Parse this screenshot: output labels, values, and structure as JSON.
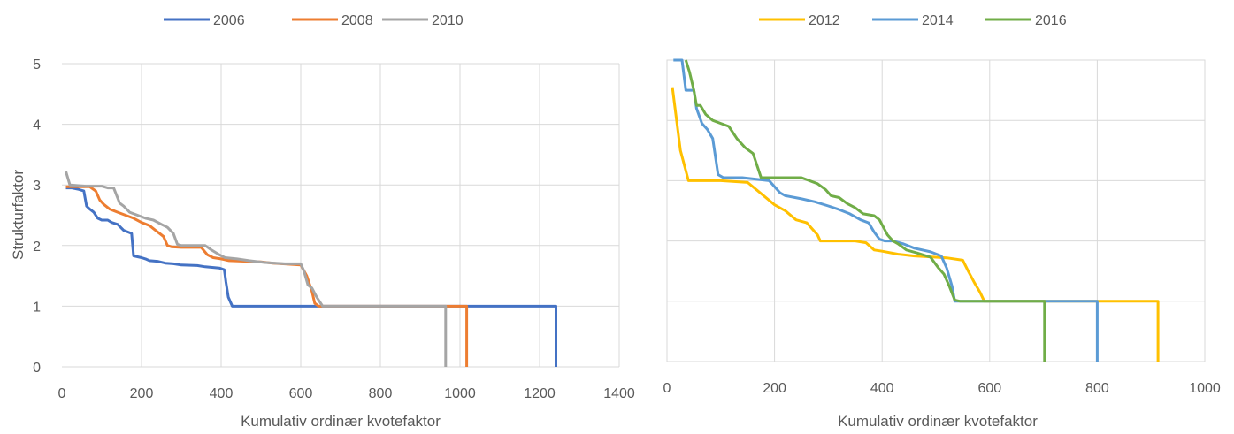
{
  "chart_data": [
    {
      "type": "line",
      "title": "",
      "xlabel": "Kumulativ ordinær kvotefaktor",
      "ylabel": "Strukturfaktor",
      "xlim": [
        0,
        1400
      ],
      "ylim": [
        0,
        5
      ],
      "x_ticks": [
        "0",
        "200",
        "400",
        "600",
        "800",
        "1000",
        "1200",
        "1400"
      ],
      "y_ticks": [
        "0",
        "1",
        "2",
        "3",
        "4",
        "5"
      ],
      "grid": "vertical",
      "legend": "top",
      "series": [
        {
          "name": "2006",
          "color": "#4472C4",
          "points": [
            [
              10,
              2.95
            ],
            [
              25,
              2.95
            ],
            [
              40,
              2.93
            ],
            [
              55,
              2.9
            ],
            [
              62,
              2.65
            ],
            [
              70,
              2.6
            ],
            [
              80,
              2.55
            ],
            [
              90,
              2.45
            ],
            [
              100,
              2.42
            ],
            [
              115,
              2.42
            ],
            [
              125,
              2.38
            ],
            [
              140,
              2.35
            ],
            [
              155,
              2.25
            ],
            [
              175,
              2.2
            ],
            [
              180,
              1.83
            ],
            [
              200,
              1.8
            ],
            [
              210,
              1.78
            ],
            [
              220,
              1.75
            ],
            [
              240,
              1.74
            ],
            [
              260,
              1.71
            ],
            [
              280,
              1.7
            ],
            [
              300,
              1.68
            ],
            [
              340,
              1.67
            ],
            [
              360,
              1.65
            ],
            [
              395,
              1.63
            ],
            [
              408,
              1.6
            ],
            [
              412,
              1.4
            ],
            [
              418,
              1.15
            ],
            [
              428,
              1.0
            ],
            [
              600,
              1.0
            ],
            [
              1241,
              1.0
            ],
            [
              1241,
              0
            ]
          ]
        },
        {
          "name": "2008",
          "color": "#ED7D31",
          "points": [
            [
              10,
              2.97
            ],
            [
              70,
              2.97
            ],
            [
              85,
              2.9
            ],
            [
              95,
              2.75
            ],
            [
              105,
              2.68
            ],
            [
              120,
              2.6
            ],
            [
              140,
              2.55
            ],
            [
              160,
              2.5
            ],
            [
              180,
              2.45
            ],
            [
              200,
              2.38
            ],
            [
              220,
              2.33
            ],
            [
              235,
              2.25
            ],
            [
              255,
              2.15
            ],
            [
              265,
              2.0
            ],
            [
              275,
              1.98
            ],
            [
              300,
              1.97
            ],
            [
              350,
              1.97
            ],
            [
              365,
              1.85
            ],
            [
              380,
              1.8
            ],
            [
              400,
              1.78
            ],
            [
              420,
              1.75
            ],
            [
              500,
              1.73
            ],
            [
              530,
              1.71
            ],
            [
              600,
              1.68
            ],
            [
              615,
              1.5
            ],
            [
              628,
              1.25
            ],
            [
              635,
              1.05
            ],
            [
              645,
              1.0
            ],
            [
              800,
              1.0
            ],
            [
              1017,
              1.0
            ],
            [
              1017,
              0
            ]
          ]
        },
        {
          "name": "2010",
          "color": "#A5A5A5",
          "points": [
            [
              10,
              3.22
            ],
            [
              20,
              3.0
            ],
            [
              60,
              2.98
            ],
            [
              100,
              2.98
            ],
            [
              115,
              2.95
            ],
            [
              130,
              2.95
            ],
            [
              145,
              2.7
            ],
            [
              155,
              2.65
            ],
            [
              170,
              2.55
            ],
            [
              190,
              2.5
            ],
            [
              210,
              2.45
            ],
            [
              230,
              2.42
            ],
            [
              250,
              2.35
            ],
            [
              265,
              2.3
            ],
            [
              280,
              2.2
            ],
            [
              290,
              2.02
            ],
            [
              300,
              2.0
            ],
            [
              360,
              2.0
            ],
            [
              375,
              1.93
            ],
            [
              395,
              1.85
            ],
            [
              410,
              1.8
            ],
            [
              440,
              1.78
            ],
            [
              470,
              1.75
            ],
            [
              510,
              1.72
            ],
            [
              560,
              1.7
            ],
            [
              600,
              1.7
            ],
            [
              608,
              1.58
            ],
            [
              618,
              1.35
            ],
            [
              628,
              1.3
            ],
            [
              640,
              1.15
            ],
            [
              655,
              1.0
            ],
            [
              700,
              1.0
            ],
            [
              964,
              1.0
            ],
            [
              964,
              0
            ]
          ]
        }
      ]
    },
    {
      "type": "line",
      "title": "",
      "xlabel": "Kumulativ ordinær kvotefaktor",
      "ylabel": "",
      "xlim": [
        0,
        1000
      ],
      "ylim": [
        0,
        5
      ],
      "x_ticks": [
        "0",
        "200",
        "400",
        "600",
        "800",
        "1000"
      ],
      "y_ticks": [],
      "grid": "both",
      "legend": "top",
      "series": [
        {
          "name": "2012",
          "color": "#FFC000",
          "points": [
            [
              10,
              4.55
            ],
            [
              25,
              3.5
            ],
            [
              40,
              3.0
            ],
            [
              100,
              3.0
            ],
            [
              150,
              2.97
            ],
            [
              200,
              2.6
            ],
            [
              220,
              2.5
            ],
            [
              240,
              2.35
            ],
            [
              260,
              2.3
            ],
            [
              280,
              2.1
            ],
            [
              285,
              2.0
            ],
            [
              300,
              2.0
            ],
            [
              350,
              2.0
            ],
            [
              370,
              1.97
            ],
            [
              385,
              1.85
            ],
            [
              400,
              1.83
            ],
            [
              430,
              1.78
            ],
            [
              460,
              1.75
            ],
            [
              500,
              1.73
            ],
            [
              520,
              1.72
            ],
            [
              550,
              1.68
            ],
            [
              560,
              1.5
            ],
            [
              572,
              1.3
            ],
            [
              582,
              1.15
            ],
            [
              590,
              1.0
            ],
            [
              700,
              1.0
            ],
            [
              913,
              1.0
            ],
            [
              913,
              0
            ]
          ]
        },
        {
          "name": "2014",
          "color": "#5B9BD5",
          "points": [
            [
              12,
              5.0
            ],
            [
              28,
              5.0
            ],
            [
              35,
              4.5
            ],
            [
              50,
              4.5
            ],
            [
              55,
              4.2
            ],
            [
              65,
              3.95
            ],
            [
              75,
              3.85
            ],
            [
              85,
              3.7
            ],
            [
              95,
              3.1
            ],
            [
              105,
              3.05
            ],
            [
              140,
              3.05
            ],
            [
              190,
              3.0
            ],
            [
              210,
              2.8
            ],
            [
              220,
              2.75
            ],
            [
              250,
              2.7
            ],
            [
              275,
              2.65
            ],
            [
              300,
              2.58
            ],
            [
              320,
              2.52
            ],
            [
              340,
              2.45
            ],
            [
              360,
              2.35
            ],
            [
              375,
              2.3
            ],
            [
              385,
              2.15
            ],
            [
              395,
              2.03
            ],
            [
              405,
              2.0
            ],
            [
              420,
              2.0
            ],
            [
              440,
              1.95
            ],
            [
              460,
              1.88
            ],
            [
              490,
              1.82
            ],
            [
              510,
              1.75
            ],
            [
              520,
              1.55
            ],
            [
              530,
              1.25
            ],
            [
              535,
              1.0
            ],
            [
              600,
              1.0
            ],
            [
              800,
              1.0
            ],
            [
              800,
              0
            ]
          ]
        },
        {
          "name": "2016",
          "color": "#70AD47",
          "points": [
            [
              35,
              5.0
            ],
            [
              42,
              4.8
            ],
            [
              50,
              4.5
            ],
            [
              55,
              4.25
            ],
            [
              62,
              4.25
            ],
            [
              72,
              4.1
            ],
            [
              85,
              4.0
            ],
            [
              100,
              3.95
            ],
            [
              115,
              3.9
            ],
            [
              130,
              3.7
            ],
            [
              145,
              3.55
            ],
            [
              160,
              3.45
            ],
            [
              175,
              3.05
            ],
            [
              200,
              3.05
            ],
            [
              250,
              3.05
            ],
            [
              280,
              2.95
            ],
            [
              295,
              2.85
            ],
            [
              305,
              2.75
            ],
            [
              320,
              2.72
            ],
            [
              335,
              2.62
            ],
            [
              350,
              2.55
            ],
            [
              365,
              2.45
            ],
            [
              385,
              2.42
            ],
            [
              395,
              2.35
            ],
            [
              410,
              2.1
            ],
            [
              420,
              2.0
            ],
            [
              430,
              1.95
            ],
            [
              445,
              1.85
            ],
            [
              465,
              1.8
            ],
            [
              490,
              1.73
            ],
            [
              505,
              1.55
            ],
            [
              515,
              1.45
            ],
            [
              525,
              1.25
            ],
            [
              535,
              1.02
            ],
            [
              545,
              1.0
            ],
            [
              600,
              1.0
            ],
            [
              702,
              1.0
            ],
            [
              702,
              0
            ]
          ]
        }
      ]
    }
  ]
}
